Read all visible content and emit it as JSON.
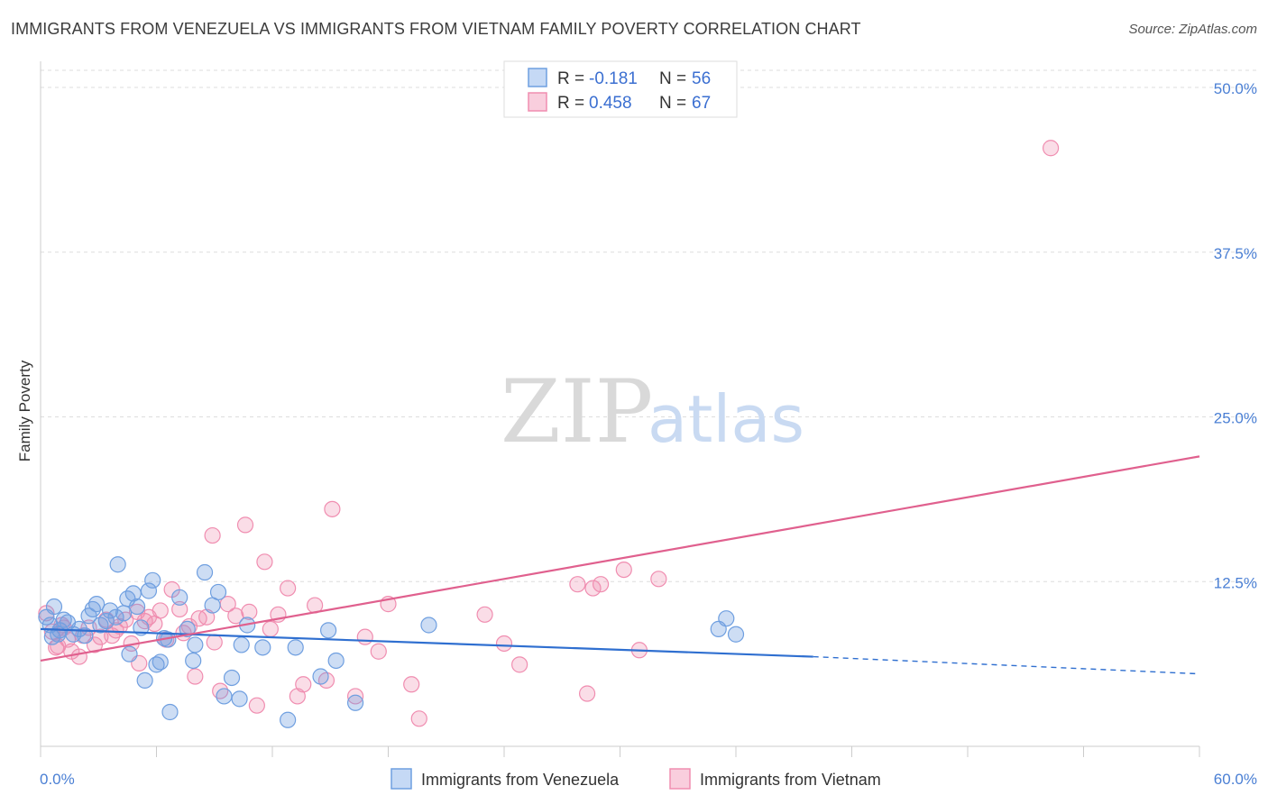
{
  "title": "IMMIGRANTS FROM VENEZUELA VS IMMIGRANTS FROM VIETNAM FAMILY POVERTY CORRELATION CHART",
  "source": "Source: ZipAtlas.com",
  "watermark": {
    "zip": "ZIP",
    "atlas": "atlas"
  },
  "colors": {
    "blue": "#6f9fe0",
    "blue_line": "#2f6fd0",
    "pink": "#f08db0",
    "pink_line": "#e0608e",
    "grid": "#dddddd",
    "axis_text": "#4a7fd4"
  },
  "chart_data": {
    "type": "scatter",
    "xlabel": "",
    "ylabel": "Family Poverty",
    "xlim": [
      0,
      60
    ],
    "ylim": [
      0,
      50
    ],
    "x_tick_labels": [
      "0.0%",
      "60.0%"
    ],
    "y_ticks": [
      12.5,
      25.0,
      37.5,
      50.0
    ],
    "y_tick_labels": [
      "12.5%",
      "25.0%",
      "37.5%",
      "50.0%"
    ],
    "legend": [
      {
        "r_label": "R = ",
        "r": "-0.181",
        "n_label": "N = ",
        "n": "56"
      },
      {
        "r_label": "R = ",
        "r": "0.458",
        "n_label": "N = ",
        "n": "67"
      }
    ],
    "series": [
      {
        "name": "Immigrants from Venezuela",
        "color": "#6f9fe0",
        "trend": {
          "x0": 0,
          "y0": 8.9,
          "x1": 40,
          "y1": 6.8,
          "dash_to_x": 60,
          "dash_to_y": 5.5
        },
        "points": [
          [
            0.3,
            9.8
          ],
          [
            0.5,
            9.2
          ],
          [
            0.6,
            8.3
          ],
          [
            0.7,
            10.6
          ],
          [
            0.9,
            8.5
          ],
          [
            1.0,
            8.8
          ],
          [
            1.2,
            9.6
          ],
          [
            1.4,
            9.4
          ],
          [
            1.7,
            8.5
          ],
          [
            2.0,
            8.9
          ],
          [
            2.3,
            8.4
          ],
          [
            2.5,
            9.9
          ],
          [
            2.7,
            10.4
          ],
          [
            2.9,
            10.8
          ],
          [
            3.1,
            9.2
          ],
          [
            3.4,
            9.5
          ],
          [
            3.6,
            10.3
          ],
          [
            3.9,
            9.8
          ],
          [
            4.0,
            13.8
          ],
          [
            4.3,
            10.1
          ],
          [
            4.5,
            11.2
          ],
          [
            4.6,
            7.0
          ],
          [
            4.8,
            11.6
          ],
          [
            5.0,
            10.6
          ],
          [
            5.2,
            9.0
          ],
          [
            5.4,
            5.0
          ],
          [
            5.6,
            11.8
          ],
          [
            5.8,
            12.6
          ],
          [
            6.0,
            6.2
          ],
          [
            6.2,
            6.4
          ],
          [
            6.4,
            8.2
          ],
          [
            6.6,
            8.1
          ],
          [
            6.7,
            2.6
          ],
          [
            7.2,
            11.3
          ],
          [
            7.6,
            8.9
          ],
          [
            7.9,
            6.5
          ],
          [
            8.0,
            7.7
          ],
          [
            8.5,
            13.2
          ],
          [
            8.9,
            10.7
          ],
          [
            9.2,
            11.7
          ],
          [
            9.5,
            3.8
          ],
          [
            9.9,
            5.2
          ],
          [
            10.3,
            3.6
          ],
          [
            10.4,
            7.7
          ],
          [
            10.7,
            9.2
          ],
          [
            11.5,
            7.5
          ],
          [
            12.8,
            2.0
          ],
          [
            13.2,
            7.5
          ],
          [
            14.5,
            5.3
          ],
          [
            14.9,
            8.8
          ],
          [
            15.3,
            6.5
          ],
          [
            16.3,
            3.3
          ],
          [
            20.1,
            9.2
          ],
          [
            35.1,
            8.9
          ],
          [
            35.5,
            9.7
          ],
          [
            36.0,
            8.5
          ]
        ]
      },
      {
        "name": "Immigrants from Vietnam",
        "color": "#f08db0",
        "trend": {
          "x0": 0,
          "y0": 6.5,
          "x1": 60,
          "y1": 22.0
        },
        "points": [
          [
            0.3,
            10.1
          ],
          [
            0.6,
            8.7
          ],
          [
            0.9,
            7.6
          ],
          [
            1.1,
            9.2
          ],
          [
            1.4,
            8.1
          ],
          [
            1.6,
            7.2
          ],
          [
            2.0,
            6.8
          ],
          [
            2.2,
            8.4
          ],
          [
            2.5,
            9.0
          ],
          [
            2.8,
            7.7
          ],
          [
            3.1,
            8.3
          ],
          [
            3.4,
            9.6
          ],
          [
            3.7,
            8.4
          ],
          [
            3.9,
            8.8
          ],
          [
            4.1,
            9.1
          ],
          [
            4.4,
            9.6
          ],
          [
            4.7,
            7.8
          ],
          [
            5.0,
            10.2
          ],
          [
            5.1,
            6.3
          ],
          [
            5.4,
            9.5
          ],
          [
            5.6,
            9.8
          ],
          [
            5.9,
            9.3
          ],
          [
            6.2,
            10.3
          ],
          [
            6.5,
            8.1
          ],
          [
            6.8,
            11.9
          ],
          [
            7.2,
            10.4
          ],
          [
            7.4,
            8.6
          ],
          [
            7.7,
            9.1
          ],
          [
            8.0,
            5.3
          ],
          [
            8.2,
            9.7
          ],
          [
            8.6,
            9.8
          ],
          [
            8.9,
            16.0
          ],
          [
            9.0,
            7.9
          ],
          [
            9.3,
            4.2
          ],
          [
            9.7,
            10.8
          ],
          [
            10.1,
            9.9
          ],
          [
            10.6,
            16.8
          ],
          [
            10.8,
            10.2
          ],
          [
            11.2,
            3.1
          ],
          [
            11.6,
            14.0
          ],
          [
            11.9,
            8.9
          ],
          [
            12.3,
            10.0
          ],
          [
            12.8,
            12.0
          ],
          [
            13.3,
            3.8
          ],
          [
            13.6,
            4.7
          ],
          [
            14.2,
            10.7
          ],
          [
            14.8,
            5.0
          ],
          [
            15.1,
            18.0
          ],
          [
            16.3,
            3.8
          ],
          [
            16.8,
            8.3
          ],
          [
            17.5,
            7.2
          ],
          [
            18.0,
            10.8
          ],
          [
            19.2,
            4.7
          ],
          [
            19.6,
            2.1
          ],
          [
            23.0,
            10.0
          ],
          [
            24.0,
            7.8
          ],
          [
            24.8,
            6.2
          ],
          [
            27.8,
            12.3
          ],
          [
            28.3,
            4.0
          ],
          [
            28.6,
            12.0
          ],
          [
            29.0,
            12.3
          ],
          [
            30.2,
            13.4
          ],
          [
            31.0,
            7.3
          ],
          [
            32.0,
            12.7
          ],
          [
            52.3,
            45.4
          ],
          [
            0.8,
            7.5
          ],
          [
            1.2,
            9.0
          ]
        ]
      }
    ]
  }
}
